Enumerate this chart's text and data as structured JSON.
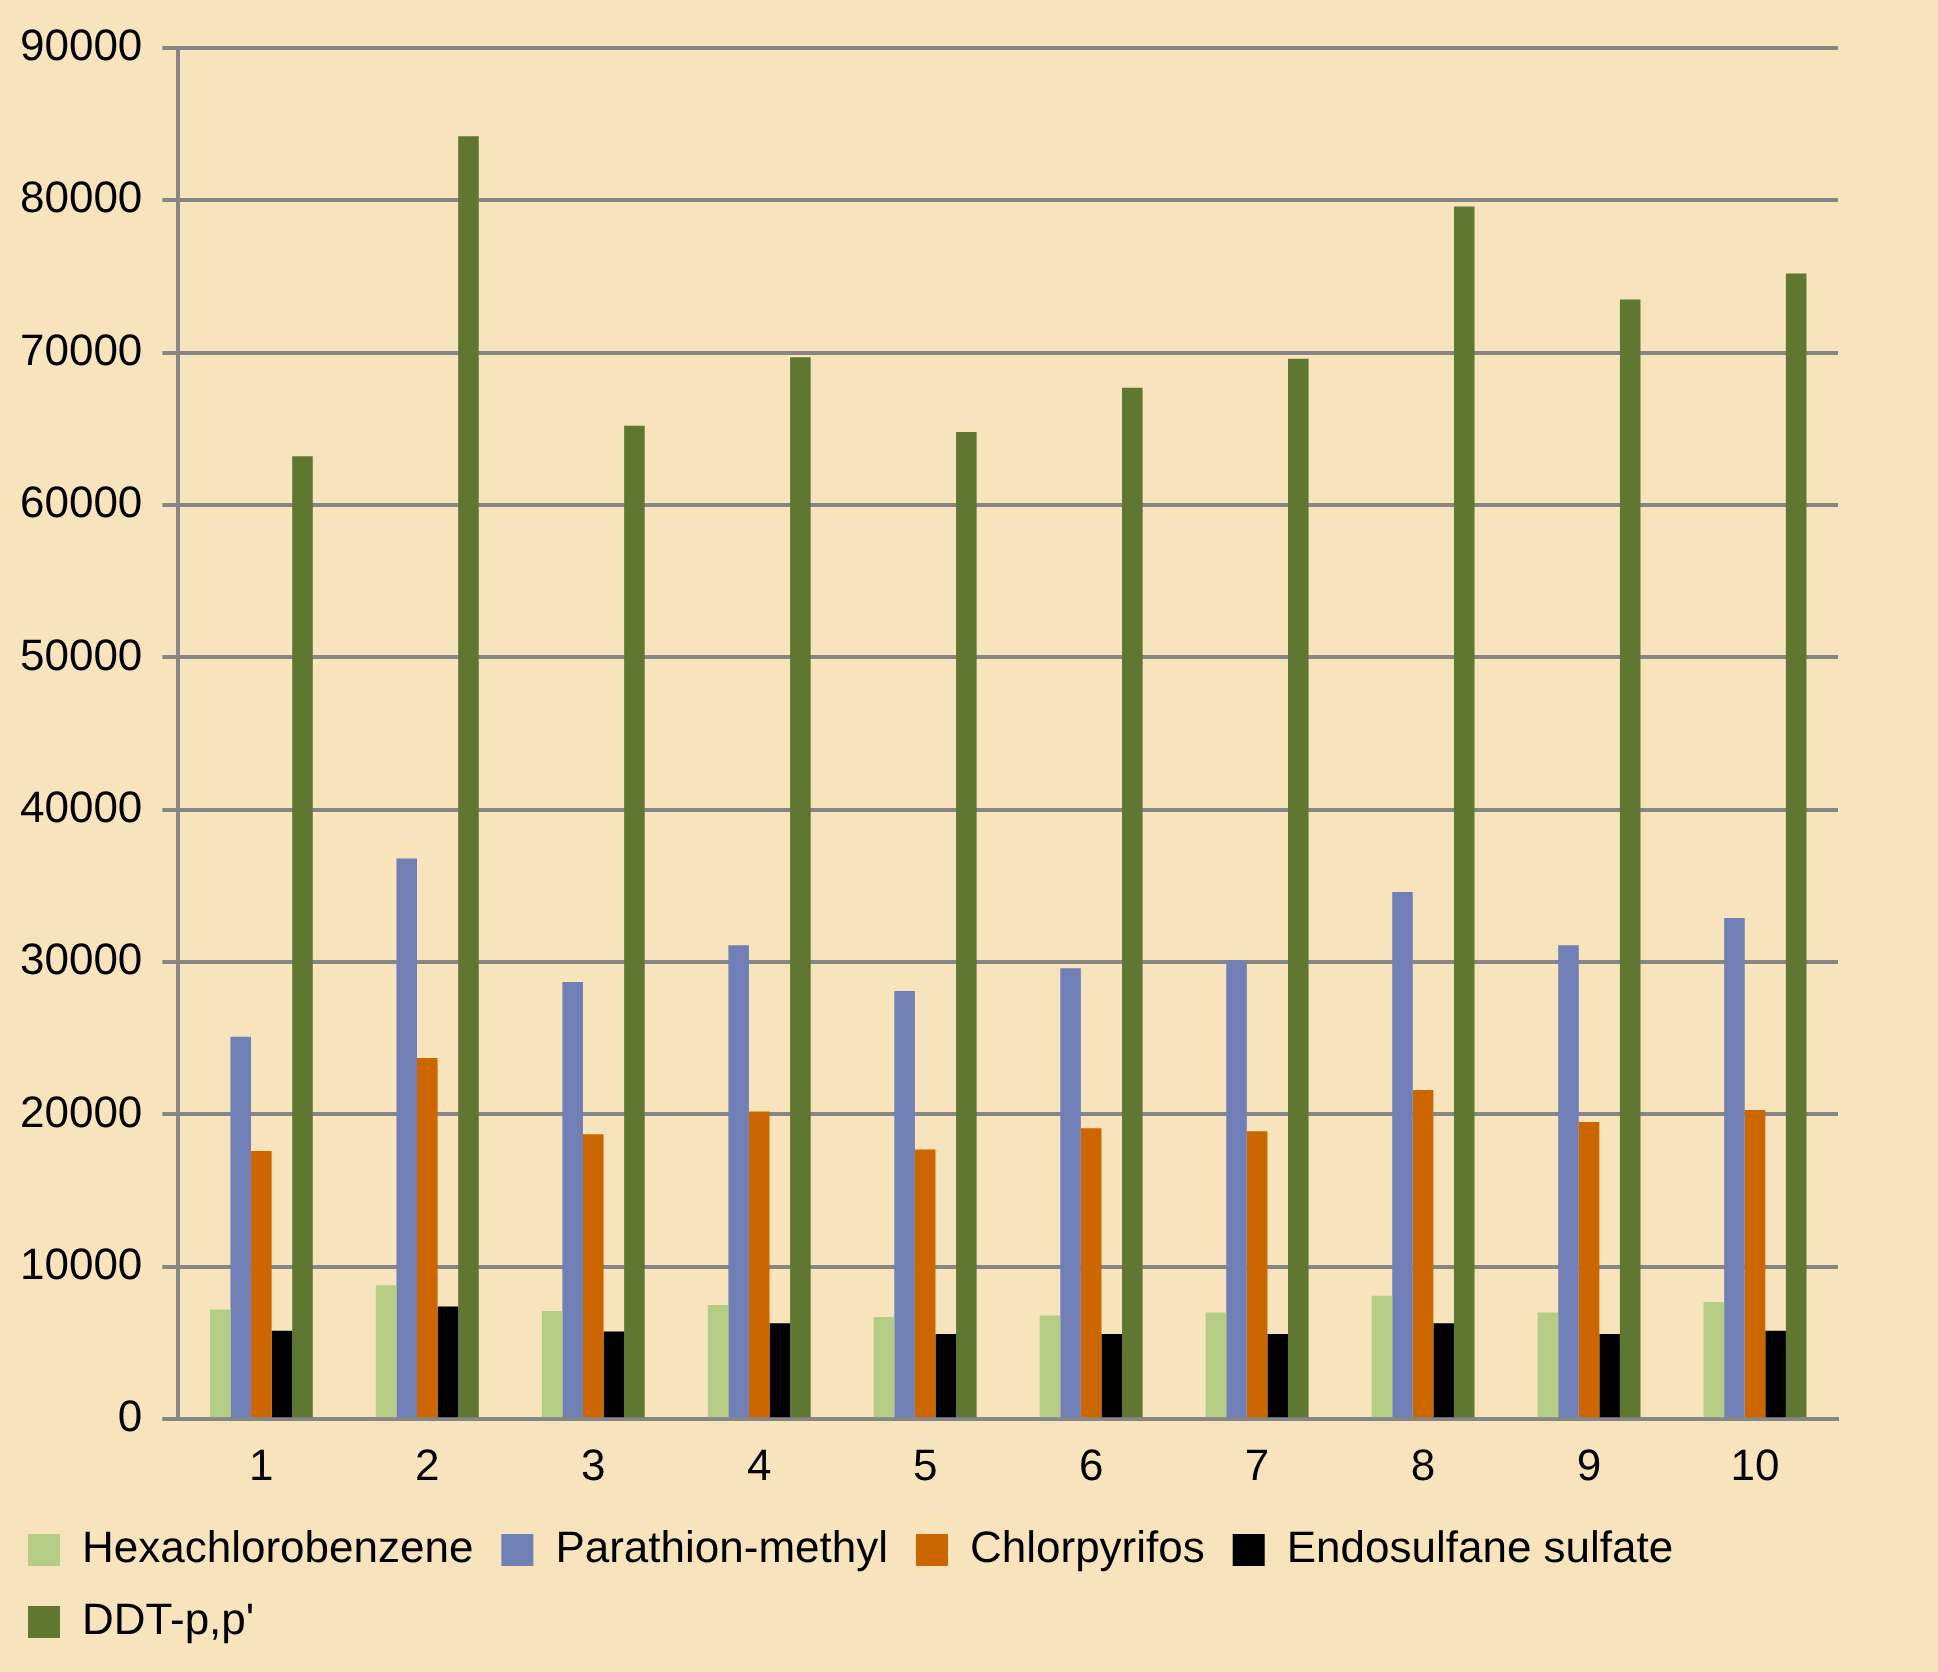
{
  "chart_data": {
    "type": "bar",
    "categories": [
      "1",
      "2",
      "3",
      "4",
      "5",
      "6",
      "7",
      "8",
      "9",
      "10"
    ],
    "series": [
      {
        "name": "Hexachlorobenzene",
        "color": "#b5cc84",
        "values": [
          7200,
          8800,
          7100,
          7500,
          6700,
          6800,
          7000,
          8100,
          7000,
          7700
        ]
      },
      {
        "name": "Parathion-methyl",
        "color": "#717fb7",
        "values": [
          25100,
          36800,
          28700,
          31100,
          28100,
          29600,
          30100,
          34600,
          31100,
          32900
        ]
      },
      {
        "name": "Chlorpyrifos",
        "color": "#cc6600",
        "values": [
          17600,
          23700,
          18700,
          20200,
          17700,
          19100,
          18900,
          21600,
          19500,
          20300
        ]
      },
      {
        "name": "Endosulfane sulfate",
        "color": "#000000",
        "values": [
          5800,
          7400,
          5750,
          6300,
          5600,
          5600,
          5600,
          6300,
          5600,
          5800
        ]
      },
      {
        "name": "DDT-p,p'",
        "color": "#5f7731",
        "values": [
          63200,
          84200,
          65200,
          69700,
          64800,
          67700,
          69600,
          79600,
          73500,
          75200
        ]
      }
    ],
    "ylim": [
      0,
      90000
    ],
    "yticks": [
      0,
      10000,
      20000,
      30000,
      40000,
      50000,
      60000,
      70000,
      80000,
      90000
    ],
    "grid": "y",
    "legend": "bottom"
  }
}
